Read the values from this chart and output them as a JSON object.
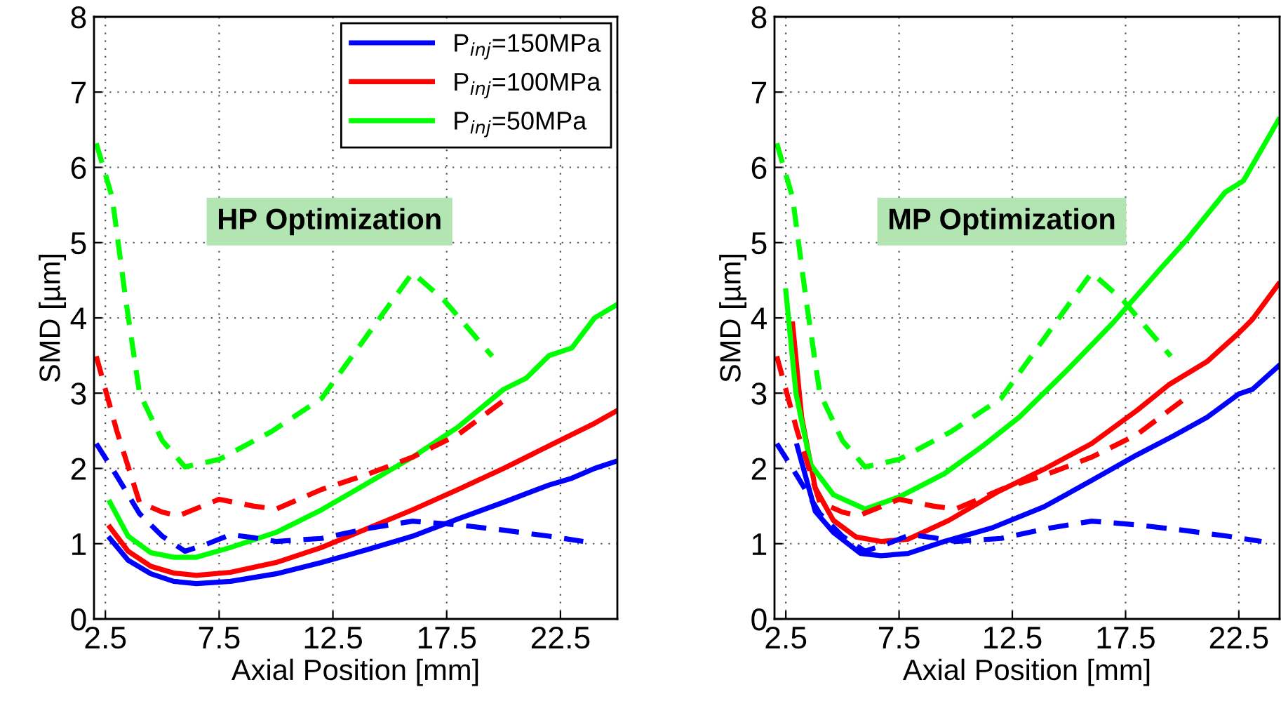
{
  "chart_data": [
    {
      "type": "line",
      "xlabel": "Axial Position [mm]",
      "ylabel": "SMD [µm]",
      "xlim": [
        2,
        25
      ],
      "xticks": [
        2.5,
        7.5,
        12.5,
        17.5,
        22.5
      ],
      "ylim": [
        0,
        8
      ],
      "yticks": [
        0,
        1,
        2,
        3,
        4,
        5,
        6,
        7,
        8
      ],
      "grid": true,
      "legend": "top right",
      "annotations": [
        "HP Optimization"
      ],
      "series": [
        {
          "name": "P$_{inj}$=150MPa",
          "color": "#0000ff",
          "line_style": "solid",
          "x": [
            2.7,
            3.5,
            4.5,
            5.5,
            6.5,
            8,
            10,
            12,
            14,
            16,
            18,
            20,
            22,
            23,
            24,
            25
          ],
          "values": [
            1.07,
            0.78,
            0.6,
            0.5,
            0.47,
            0.5,
            0.6,
            0.75,
            0.92,
            1.1,
            1.33,
            1.55,
            1.78,
            1.87,
            2.0,
            2.1
          ]
        },
        {
          "name": "P$_{inj}$=100MPa",
          "color": "#ff0000",
          "line_style": "solid",
          "x": [
            2.7,
            3.5,
            4.5,
            5.5,
            6.5,
            8,
            10,
            12,
            14,
            16,
            18,
            20,
            22,
            23,
            24,
            25
          ],
          "values": [
            1.22,
            0.9,
            0.7,
            0.61,
            0.58,
            0.62,
            0.75,
            0.95,
            1.2,
            1.45,
            1.72,
            2.0,
            2.3,
            2.45,
            2.6,
            2.77
          ]
        },
        {
          "name": "P$_{inj}$=50MPa",
          "color": "#00ff00",
          "line_style": "solid",
          "x": [
            2.7,
            3.5,
            4.5,
            5.5,
            6.5,
            8,
            10,
            12,
            14,
            16,
            18,
            20,
            21,
            22,
            23,
            24,
            25
          ],
          "values": [
            1.55,
            1.1,
            0.88,
            0.82,
            0.82,
            0.95,
            1.15,
            1.45,
            1.8,
            2.15,
            2.55,
            3.05,
            3.2,
            3.5,
            3.6,
            4.0,
            4.18
          ]
        },
        {
          "color": "#0000ff",
          "line_style": "dashed",
          "x": [
            2.1,
            3,
            4,
            5,
            6,
            7,
            8,
            9,
            10,
            12,
            14,
            16,
            18,
            20,
            22,
            23.5
          ],
          "values": [
            2.33,
            1.9,
            1.4,
            1.1,
            0.9,
            1.0,
            1.12,
            1.08,
            1.03,
            1.07,
            1.2,
            1.3,
            1.25,
            1.18,
            1.1,
            1.03
          ]
        },
        {
          "color": "#ff0000",
          "line_style": "dashed",
          "x": [
            2.1,
            3,
            4,
            5,
            5.7,
            7.5,
            9,
            10,
            12,
            14,
            16,
            18,
            20
          ],
          "values": [
            3.49,
            2.5,
            1.55,
            1.42,
            1.37,
            1.59,
            1.5,
            1.46,
            1.72,
            1.92,
            2.15,
            2.45,
            2.9
          ]
        },
        {
          "color": "#00ff00",
          "line_style": "dashed",
          "x": [
            2.1,
            2.8,
            3.4,
            4,
            5,
            6,
            7.5,
            9.8,
            12,
            13.7,
            16,
            17.4,
            19.5
          ],
          "values": [
            6.32,
            5.6,
            4.23,
            3.0,
            2.37,
            2.02,
            2.12,
            2.49,
            2.93,
            3.64,
            4.6,
            4.23,
            3.49
          ]
        }
      ]
    },
    {
      "type": "line",
      "xlabel": "Axial Position [mm]",
      "ylabel": "SMD [µm]",
      "xlim": [
        2,
        24.3
      ],
      "xticks": [
        2.5,
        7.5,
        12.5,
        17.5,
        22.5
      ],
      "ylim": [
        0,
        8
      ],
      "yticks": [
        0,
        1,
        2,
        3,
        4,
        5,
        6,
        7,
        8
      ],
      "grid": true,
      "annotations": [
        "MP Optimization"
      ],
      "series": [
        {
          "color": "#0000ff",
          "line_style": "solid",
          "x": [
            3.0,
            3.8,
            4.6,
            5.8,
            6.7,
            7.9,
            9.5,
            11.6,
            13.9,
            16.0,
            18.0,
            19.6,
            21.1,
            22.5,
            23.1,
            24.25
          ],
          "values": [
            2.3,
            1.43,
            1.15,
            0.87,
            0.84,
            0.87,
            1.03,
            1.21,
            1.49,
            1.84,
            2.18,
            2.43,
            2.68,
            2.99,
            3.05,
            3.36
          ]
        },
        {
          "color": "#ff0000",
          "line_style": "solid",
          "x": [
            2.8,
            3.2,
            3.8,
            4.6,
            5.6,
            6.7,
            7.9,
            9.7,
            11.8,
            13.9,
            16,
            18,
            19.4,
            21.1,
            22.5,
            23.1,
            24.25
          ],
          "values": [
            3.92,
            2.68,
            1.74,
            1.31,
            1.09,
            1.03,
            1.06,
            1.31,
            1.68,
            1.99,
            2.33,
            2.77,
            3.11,
            3.42,
            3.8,
            3.98,
            4.45
          ]
        },
        {
          "color": "#00ff00",
          "line_style": "solid",
          "x": [
            2.5,
            2.95,
            3.6,
            4.6,
            6.0,
            7.5,
            9.5,
            11.2,
            12.8,
            14.9,
            16.9,
            19,
            20.2,
            21.9,
            22.7,
            24.25
          ],
          "values": [
            4.36,
            2.99,
            2.05,
            1.65,
            1.46,
            1.62,
            1.93,
            2.3,
            2.68,
            3.3,
            3.92,
            4.64,
            5.04,
            5.67,
            5.82,
            6.63
          ]
        },
        {
          "color": "#0000ff",
          "line_style": "dashed",
          "x": [
            2.1,
            3,
            4,
            5,
            6,
            7,
            8,
            9,
            10,
            12,
            14,
            16,
            18,
            20,
            22,
            23.5
          ],
          "values": [
            2.33,
            1.9,
            1.4,
            1.1,
            0.9,
            1.0,
            1.12,
            1.08,
            1.03,
            1.07,
            1.2,
            1.3,
            1.25,
            1.18,
            1.1,
            1.03
          ]
        },
        {
          "color": "#ff0000",
          "line_style": "dashed",
          "x": [
            2.1,
            3,
            4,
            5,
            5.7,
            7.5,
            9,
            10,
            12,
            14,
            16,
            18,
            20
          ],
          "values": [
            3.49,
            2.5,
            1.55,
            1.42,
            1.37,
            1.59,
            1.5,
            1.46,
            1.72,
            1.92,
            2.15,
            2.45,
            2.9
          ]
        },
        {
          "color": "#00ff00",
          "line_style": "dashed",
          "x": [
            2.1,
            2.8,
            3.4,
            4,
            5,
            6,
            7.5,
            9.8,
            12,
            13.7,
            16,
            17.4,
            19.5
          ],
          "values": [
            6.32,
            5.6,
            4.23,
            3.0,
            2.37,
            2.02,
            2.12,
            2.49,
            2.93,
            3.64,
            4.6,
            4.23,
            3.49
          ]
        }
      ]
    }
  ]
}
